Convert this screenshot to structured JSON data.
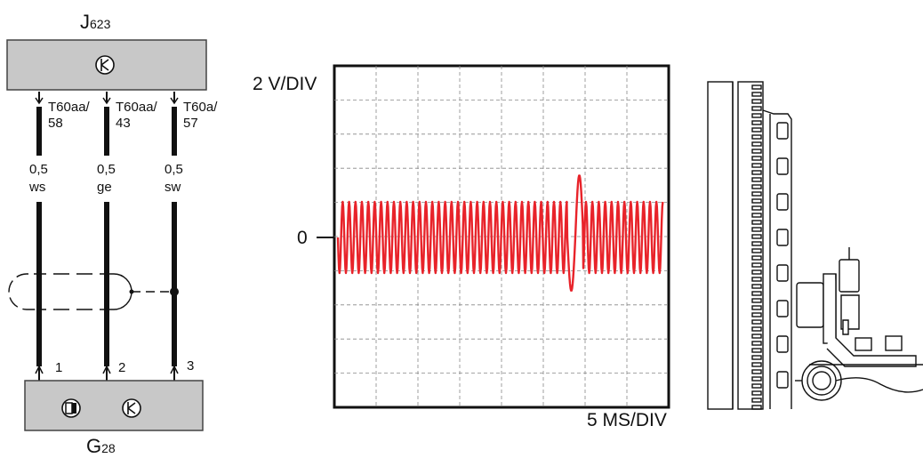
{
  "wiring": {
    "control_unit": {
      "name": "J",
      "subscript": "623"
    },
    "sensor": {
      "name": "G",
      "subscript": "28"
    },
    "wires": [
      {
        "connector": "T60aa/",
        "pin": "58",
        "size": "0,5",
        "color": "ws",
        "sensor_pin": "1"
      },
      {
        "connector": "T60aa/",
        "pin": "43",
        "size": "0,5",
        "color": "ge",
        "sensor_pin": "2"
      },
      {
        "connector": "T60a/",
        "pin": "57",
        "size": "0,5",
        "color": "sw",
        "sensor_pin": "3"
      }
    ]
  },
  "scope": {
    "volt_div": "2 V/DIV",
    "time_div": "5 MS/DIV",
    "zero_label": "0",
    "trace_color": "#e8232a"
  }
}
